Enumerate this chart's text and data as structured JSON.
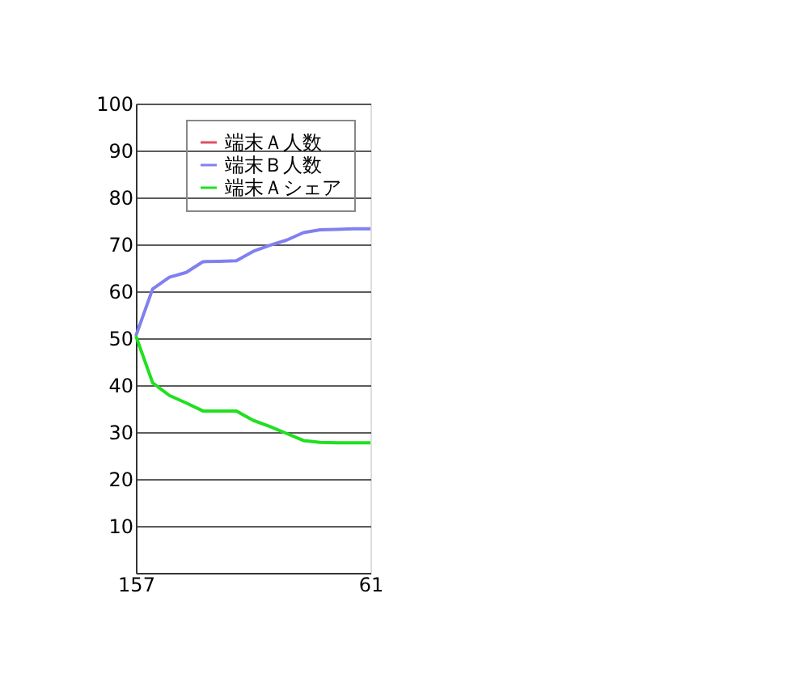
{
  "chart_data": {
    "type": "line",
    "categories": [
      "157",
      null,
      null,
      null,
      null,
      null,
      null,
      null,
      null,
      null,
      null,
      null,
      null,
      null,
      "61"
    ],
    "series": [
      {
        "name": "端末Ａ人数",
        "color": "#e05060",
        "values": [
          null,
          null,
          null,
          null,
          null,
          null,
          null,
          null,
          null,
          null,
          null,
          null,
          null,
          null,
          null
        ]
      },
      {
        "name": "端末Ｂ人数",
        "color": "#8080f0",
        "values": [
          50.5,
          60.5,
          63,
          64,
          66.3,
          66.4,
          66.5,
          68.5,
          69.8,
          70.9,
          72.5,
          73.1,
          73.2,
          73.3,
          73.3
        ]
      },
      {
        "name": "端末Ａシェア",
        "color": "#20e020",
        "values": [
          50.5,
          40.5,
          37.8,
          36.2,
          34.5,
          34.5,
          34.5,
          32.5,
          31.2,
          29.7,
          28.2,
          27.8,
          27.7,
          27.7,
          27.7
        ]
      }
    ],
    "ylim": [
      0,
      100
    ],
    "yticks": [
      10,
      20,
      30,
      40,
      50,
      60,
      70,
      80,
      90,
      100
    ],
    "grid": "y",
    "legend": "top right",
    "marker": "none",
    "line_style": "solid"
  }
}
